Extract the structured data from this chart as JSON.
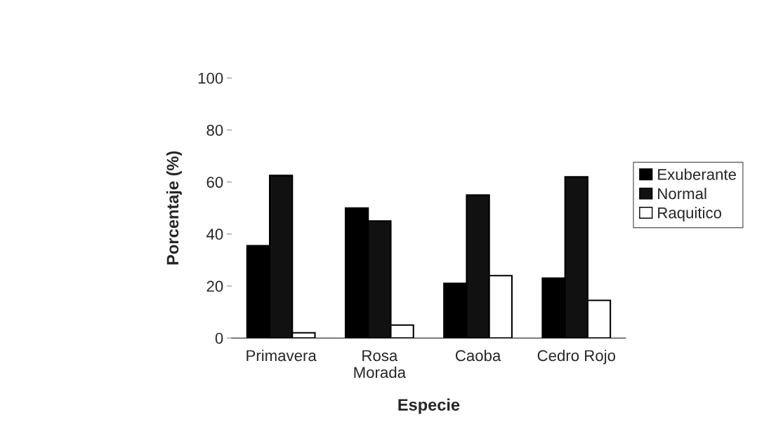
{
  "chart_data": {
    "type": "bar",
    "xlabel": "Especie",
    "ylabel": "Porcentaje (%)",
    "categories": [
      "Primavera",
      "Rosa\nMorada",
      "Caoba",
      "Cedro Rojo"
    ],
    "series": [
      {
        "name": "Exuberante",
        "color": "#000000",
        "values": [
          35.5,
          50,
          21,
          23
        ]
      },
      {
        "name": "Normal",
        "color": "#111111",
        "values": [
          62.5,
          45,
          55,
          62
        ]
      },
      {
        "name": "Raquitico",
        "color": "#ffffff",
        "values": [
          2,
          5,
          24,
          14.5
        ]
      }
    ],
    "ylim": [
      0,
      100
    ],
    "yticks": [
      0,
      20,
      40,
      60,
      80,
      100
    ],
    "grid": false,
    "legend": "right"
  }
}
